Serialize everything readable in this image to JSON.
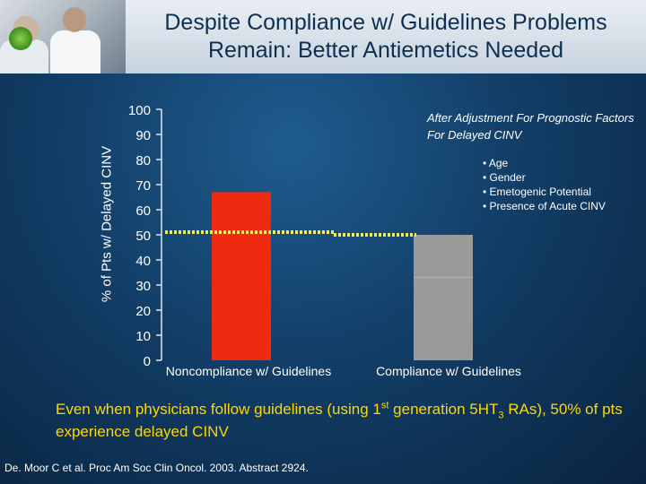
{
  "slide": {
    "title_line1": "Despite Compliance w/ Guidelines Problems",
    "title_line2": "Remain: Better Antiemetics Needed",
    "annotation_title": "After Adjustment For Prognostic Factors For Delayed CINV",
    "annotation_bullets": [
      "• Age",
      "• Gender",
      "• Emetogenic Potential",
      "• Presence of Acute CINV"
    ],
    "summary_part1": "Even when physicians follow guidelines (using 1",
    "summary_sup": "st",
    "summary_part2": " generation 5HT",
    "summary_sub": "3",
    "summary_part3": " RAs), 50% of pts experience delayed CINV",
    "citation": "De. Moor C et al. Proc Am Soc Clin Oncol. 2003. Abstract 2924."
  },
  "chart_data": {
    "type": "bar",
    "ylabel": "% of Pts w/ Delayed CINV",
    "ylim": [
      0,
      100
    ],
    "yticks": [
      0,
      10,
      20,
      30,
      40,
      50,
      60,
      70,
      80,
      90,
      100
    ],
    "categories": [
      "Noncompliance w/ Guidelines",
      "Compliance w/ Guidelines"
    ],
    "values": [
      67,
      50
    ],
    "colors": [
      "#ee2a10",
      "#9a9a9a"
    ],
    "reference_line": {
      "value": 50,
      "color": "#f4f04a",
      "style": "dotted"
    },
    "grid": false
  }
}
